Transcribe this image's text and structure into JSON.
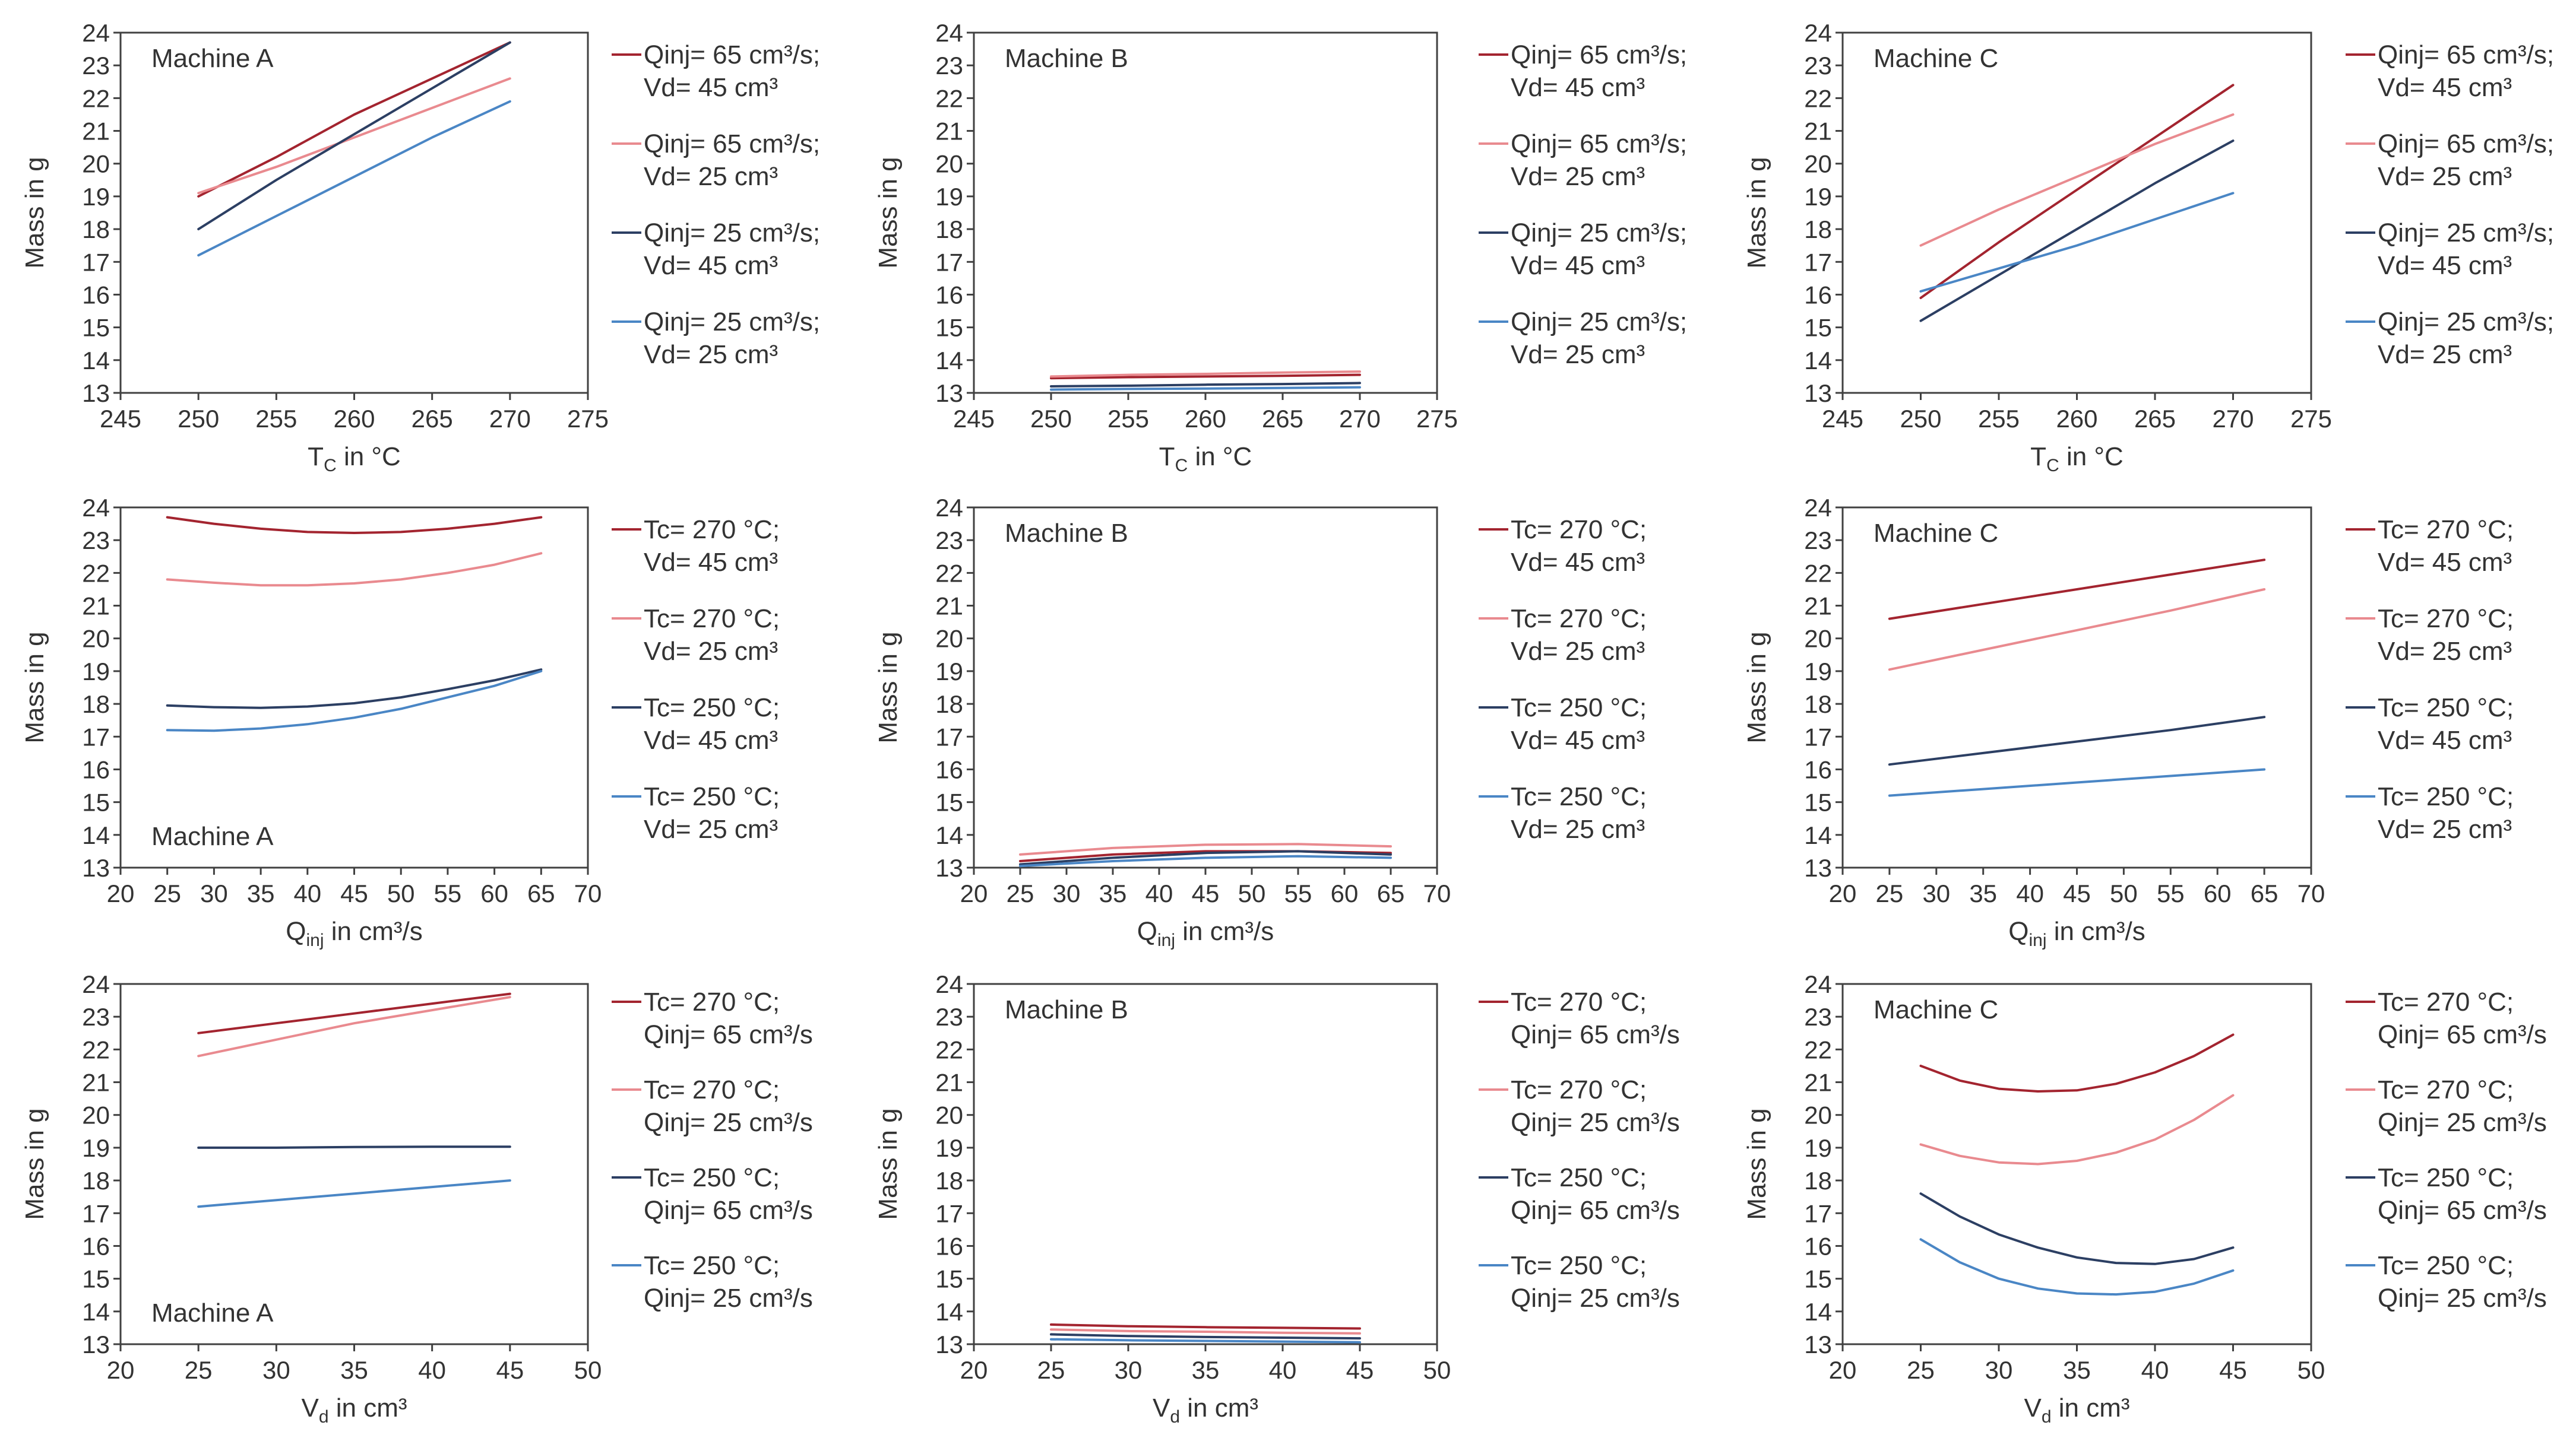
{
  "figure": {
    "description": "9 panel grid"
  },
  "colors": {
    "dark_red": "#a3242f",
    "light_red": "#e98a8f",
    "dark_blue": "#2c3f63",
    "light_blue": "#4a86c5",
    "axis": "#333333",
    "frame": "#404040"
  },
  "chart_data": [
    {
      "type": "line",
      "machine": "Machine A",
      "title_pos": "top-left",
      "xlabel": "T",
      "xlabel_sub": "C",
      "xlabel_rest": " in °C",
      "ylabel": "Mass in g",
      "xlim": [
        245,
        275
      ],
      "xticks": [
        245,
        250,
        255,
        260,
        265,
        270,
        275
      ],
      "ylim": [
        13,
        24
      ],
      "legend": [
        [
          "Qinj= 65 cm³/s;",
          "Vd= 45 cm³"
        ],
        [
          "Qinj= 65 cm³/s;",
          "Vd= 25 cm³"
        ],
        [
          "Qinj= 25 cm³/s;",
          "Vd= 45 cm³"
        ],
        [
          "Qinj= 25 cm³/s;",
          "Vd= 25 cm³"
        ]
      ],
      "series": [
        {
          "name": "Qinj= 65 cm³/s; Vd= 45 cm³",
          "x": [
            250,
            255,
            260,
            265,
            270
          ],
          "y": [
            19.0,
            20.2,
            21.5,
            22.6,
            23.7
          ]
        },
        {
          "name": "Qinj= 65 cm³/s; Vd= 25 cm³",
          "x": [
            250,
            255,
            260,
            265,
            270
          ],
          "y": [
            19.1,
            19.9,
            20.8,
            21.7,
            22.6
          ]
        },
        {
          "name": "Qinj= 25 cm³/s; Vd= 45 cm³",
          "x": [
            250,
            255,
            260,
            265,
            270
          ],
          "y": [
            18.0,
            19.5,
            20.9,
            22.3,
            23.7
          ]
        },
        {
          "name": "Qinj= 25 cm³/s; Vd= 25 cm³",
          "x": [
            250,
            255,
            260,
            265,
            270
          ],
          "y": [
            17.2,
            18.4,
            19.6,
            20.8,
            21.9
          ]
        }
      ]
    },
    {
      "type": "line",
      "machine": "Machine B",
      "title_pos": "top-left",
      "xlabel": "T",
      "xlabel_sub": "C",
      "xlabel_rest": " in °C",
      "ylabel": "Mass in g",
      "xlim": [
        245,
        275
      ],
      "xticks": [
        245,
        250,
        255,
        260,
        265,
        270,
        275
      ],
      "ylim": [
        13,
        24
      ],
      "legend": [
        [
          "Qinj= 65 cm³/s;",
          "Vd= 45 cm³"
        ],
        [
          "Qinj= 65 cm³/s;",
          "Vd= 25 cm³"
        ],
        [
          "Qinj= 25 cm³/s;",
          "Vd= 45 cm³"
        ],
        [
          "Qinj= 25 cm³/s;",
          "Vd= 25 cm³"
        ]
      ],
      "series": [
        {
          "name": "Qinj= 65 cm³/s; Vd= 45 cm³",
          "x": [
            250,
            255,
            260,
            265,
            270
          ],
          "y": [
            13.45,
            13.48,
            13.5,
            13.52,
            13.55
          ]
        },
        {
          "name": "Qinj= 65 cm³/s; Vd= 25 cm³",
          "x": [
            250,
            255,
            260,
            265,
            270
          ],
          "y": [
            13.5,
            13.55,
            13.58,
            13.62,
            13.65
          ]
        },
        {
          "name": "Qinj= 25 cm³/s; Vd= 45 cm³",
          "x": [
            250,
            255,
            260,
            265,
            270
          ],
          "y": [
            13.2,
            13.22,
            13.25,
            13.27,
            13.3
          ]
        },
        {
          "name": "Qinj= 25 cm³/s; Vd= 25 cm³",
          "x": [
            250,
            255,
            260,
            265,
            270
          ],
          "y": [
            13.1,
            13.12,
            13.13,
            13.15,
            13.17
          ]
        }
      ]
    },
    {
      "type": "line",
      "machine": "Machine C",
      "title_pos": "top-left",
      "xlabel": "T",
      "xlabel_sub": "C",
      "xlabel_rest": " in °C",
      "ylabel": "Mass in g",
      "xlim": [
        245,
        275
      ],
      "xticks": [
        245,
        250,
        255,
        260,
        265,
        270,
        275
      ],
      "ylim": [
        13,
        24
      ],
      "legend": [
        [
          "Qinj= 65 cm³/s;",
          "Vd= 45 cm³"
        ],
        [
          "Qinj= 65 cm³/s;",
          "Vd= 25 cm³"
        ],
        [
          "Qinj= 25 cm³/s;",
          "Vd= 45 cm³"
        ],
        [
          "Qinj= 25 cm³/s;",
          "Vd= 25 cm³"
        ]
      ],
      "series": [
        {
          "name": "Qinj= 65 cm³/s; Vd= 45 cm³",
          "x": [
            250,
            255,
            260,
            265,
            270
          ],
          "y": [
            15.9,
            17.6,
            19.2,
            20.8,
            22.4
          ]
        },
        {
          "name": "Qinj= 65 cm³/s; Vd= 25 cm³",
          "x": [
            250,
            255,
            260,
            265,
            270
          ],
          "y": [
            17.5,
            18.6,
            19.6,
            20.6,
            21.5
          ]
        },
        {
          "name": "Qinj= 25 cm³/s; Vd= 45 cm³",
          "x": [
            250,
            255,
            260,
            265,
            270
          ],
          "y": [
            15.2,
            16.6,
            18.0,
            19.4,
            20.7
          ]
        },
        {
          "name": "Qinj= 25 cm³/s; Vd= 25 cm³",
          "x": [
            250,
            255,
            260,
            265,
            270
          ],
          "y": [
            16.1,
            16.8,
            17.5,
            18.3,
            19.1
          ]
        }
      ]
    },
    {
      "type": "line",
      "machine": "Machine A",
      "title_pos": "bottom-left",
      "xlabel": "Q",
      "xlabel_sub": "inj",
      "xlabel_rest": " in cm³/s",
      "ylabel": "Mass in g",
      "xlim": [
        20,
        70
      ],
      "xticks": [
        20,
        25,
        30,
        35,
        40,
        45,
        50,
        55,
        60,
        65,
        70
      ],
      "ylim": [
        13,
        24
      ],
      "legend": [
        [
          "Tc= 270 °C;",
          "Vd= 45 cm³"
        ],
        [
          "Tc= 270 °C;",
          "Vd= 25 cm³"
        ],
        [
          "Tc= 250 °C;",
          "Vd= 45 cm³"
        ],
        [
          "Tc= 250 °C;",
          "Vd= 25 cm³"
        ]
      ],
      "series": [
        {
          "name": "Tc= 270 °C; Vd= 45 cm³",
          "x": [
            25,
            30,
            35,
            40,
            45,
            50,
            55,
            60,
            65
          ],
          "y": [
            23.7,
            23.5,
            23.35,
            23.25,
            23.22,
            23.25,
            23.35,
            23.5,
            23.7
          ]
        },
        {
          "name": "Tc= 270 °C; Vd= 25 cm³",
          "x": [
            25,
            30,
            35,
            40,
            45,
            50,
            55,
            60,
            65
          ],
          "y": [
            21.8,
            21.7,
            21.62,
            21.62,
            21.68,
            21.8,
            22.0,
            22.25,
            22.6
          ]
        },
        {
          "name": "Tc= 250 °C; Vd= 45 cm³",
          "x": [
            25,
            30,
            35,
            40,
            45,
            50,
            55,
            60,
            65
          ],
          "y": [
            17.95,
            17.9,
            17.88,
            17.92,
            18.02,
            18.2,
            18.45,
            18.72,
            19.05
          ]
        },
        {
          "name": "Tc= 250 °C; Vd= 25 cm³",
          "x": [
            25,
            30,
            35,
            40,
            45,
            50,
            55,
            60,
            65
          ],
          "y": [
            17.2,
            17.18,
            17.25,
            17.38,
            17.58,
            17.85,
            18.2,
            18.55,
            19.0
          ]
        }
      ]
    },
    {
      "type": "line",
      "machine": "Machine B",
      "title_pos": "top-left",
      "xlabel": "Q",
      "xlabel_sub": "inj",
      "xlabel_rest": " in cm³/s",
      "ylabel": "Mass in g",
      "xlim": [
        20,
        70
      ],
      "xticks": [
        20,
        25,
        30,
        35,
        40,
        45,
        50,
        55,
        60,
        65,
        70
      ],
      "ylim": [
        13,
        24
      ],
      "legend": [
        [
          "Tc= 270 °C;",
          "Vd= 45 cm³"
        ],
        [
          "Tc= 270 °C;",
          "Vd= 25 cm³"
        ],
        [
          "Tc= 250 °C;",
          "Vd= 45 cm³"
        ],
        [
          "Tc= 250 °C;",
          "Vd= 25 cm³"
        ]
      ],
      "series": [
        {
          "name": "Tc= 270 °C; Vd= 45 cm³",
          "x": [
            25,
            35,
            45,
            55,
            65
          ],
          "y": [
            13.2,
            13.4,
            13.5,
            13.5,
            13.45
          ]
        },
        {
          "name": "Tc= 270 °C; Vd= 25 cm³",
          "x": [
            25,
            35,
            45,
            55,
            65
          ],
          "y": [
            13.4,
            13.6,
            13.7,
            13.72,
            13.65
          ]
        },
        {
          "name": "Tc= 250 °C; Vd= 45 cm³",
          "x": [
            25,
            35,
            45,
            55,
            65
          ],
          "y": [
            13.1,
            13.3,
            13.45,
            13.5,
            13.4
          ]
        },
        {
          "name": "Tc= 250 °C; Vd= 25 cm³",
          "x": [
            25,
            35,
            45,
            55,
            65
          ],
          "y": [
            13.05,
            13.2,
            13.3,
            13.35,
            13.3
          ]
        }
      ]
    },
    {
      "type": "line",
      "machine": "Machine C",
      "title_pos": "top-left",
      "xlabel": "Q",
      "xlabel_sub": "inj",
      "xlabel_rest": " in cm³/s",
      "ylabel": "Mass in g",
      "xlim": [
        20,
        70
      ],
      "xticks": [
        20,
        25,
        30,
        35,
        40,
        45,
        50,
        55,
        60,
        65,
        70
      ],
      "ylim": [
        13,
        24
      ],
      "legend": [
        [
          "Tc= 270 °C;",
          "Vd= 45 cm³"
        ],
        [
          "Tc= 270 °C;",
          "Vd= 25 cm³"
        ],
        [
          "Tc= 250 °C;",
          "Vd= 45 cm³"
        ],
        [
          "Tc= 250 °C;",
          "Vd= 25 cm³"
        ]
      ],
      "series": [
        {
          "name": "Tc= 270 °C; Vd= 45 cm³",
          "x": [
            25,
            35,
            45,
            55,
            65
          ],
          "y": [
            20.6,
            21.05,
            21.5,
            21.95,
            22.4
          ]
        },
        {
          "name": "Tc= 270 °C; Vd= 25 cm³",
          "x": [
            25,
            35,
            45,
            55,
            65
          ],
          "y": [
            19.05,
            19.65,
            20.25,
            20.85,
            21.5
          ]
        },
        {
          "name": "Tc= 250 °C; Vd= 45 cm³",
          "x": [
            25,
            35,
            45,
            55,
            65
          ],
          "y": [
            16.15,
            16.5,
            16.85,
            17.2,
            17.6
          ]
        },
        {
          "name": "Tc= 250 °C; Vd= 25 cm³",
          "x": [
            25,
            35,
            45,
            55,
            65
          ],
          "y": [
            15.2,
            15.4,
            15.6,
            15.8,
            16.0
          ]
        }
      ]
    },
    {
      "type": "line",
      "machine": "Machine A",
      "title_pos": "bottom-left",
      "xlabel": "V",
      "xlabel_sub": "d",
      "xlabel_rest": " in cm³",
      "ylabel": "Mass in g",
      "xlim": [
        20,
        50
      ],
      "xticks": [
        20,
        25,
        30,
        35,
        40,
        45,
        50
      ],
      "ylim": [
        13,
        24
      ],
      "legend": [
        [
          "Tc= 270 °C;",
          "Qinj= 65 cm³/s"
        ],
        [
          "Tc= 270 °C;",
          "Qinj= 25 cm³/s"
        ],
        [
          "Tc= 250 °C;",
          "Qinj= 65 cm³/s"
        ],
        [
          "Tc= 250 °C;",
          "Qinj= 25 cm³/s"
        ]
      ],
      "series": [
        {
          "name": "Tc= 270 °C; Qinj= 65 cm³/s",
          "x": [
            25,
            30,
            35,
            40,
            45
          ],
          "y": [
            22.5,
            22.8,
            23.1,
            23.4,
            23.7
          ]
        },
        {
          "name": "Tc= 270 °C; Qinj= 25 cm³/s",
          "x": [
            25,
            30,
            35,
            40,
            45
          ],
          "y": [
            21.8,
            22.3,
            22.8,
            23.2,
            23.6
          ]
        },
        {
          "name": "Tc= 250 °C; Qinj= 65 cm³/s",
          "x": [
            25,
            30,
            35,
            40,
            45
          ],
          "y": [
            19.0,
            19.0,
            19.02,
            19.03,
            19.03
          ]
        },
        {
          "name": "Tc= 250 °C; Qinj= 25 cm³/s",
          "x": [
            25,
            30,
            35,
            40,
            45
          ],
          "y": [
            17.2,
            17.4,
            17.6,
            17.8,
            18.0
          ]
        }
      ]
    },
    {
      "type": "line",
      "machine": "Machine B",
      "title_pos": "top-left",
      "xlabel": "V",
      "xlabel_sub": "d",
      "xlabel_rest": " in cm³",
      "ylabel": "Mass in g",
      "xlim": [
        20,
        50
      ],
      "xticks": [
        20,
        25,
        30,
        35,
        40,
        45,
        50
      ],
      "ylim": [
        13,
        24
      ],
      "legend": [
        [
          "Tc= 270 °C;",
          "Qinj= 65 cm³/s"
        ],
        [
          "Tc= 270 °C;",
          "Qinj= 25 cm³/s"
        ],
        [
          "Tc= 250 °C;",
          "Qinj= 65 cm³/s"
        ],
        [
          "Tc= 250 °C;",
          "Qinj= 25 cm³/s"
        ]
      ],
      "series": [
        {
          "name": "Tc= 270 °C; Qinj= 65 cm³/s",
          "x": [
            25,
            30,
            35,
            40,
            45
          ],
          "y": [
            13.6,
            13.55,
            13.52,
            13.5,
            13.48
          ]
        },
        {
          "name": "Tc= 270 °C; Qinj= 25 cm³/s",
          "x": [
            25,
            30,
            35,
            40,
            45
          ],
          "y": [
            13.45,
            13.4,
            13.38,
            13.35,
            13.33
          ]
        },
        {
          "name": "Tc= 250 °C; Qinj= 65 cm³/s",
          "x": [
            25,
            30,
            35,
            40,
            45
          ],
          "y": [
            13.3,
            13.25,
            13.22,
            13.2,
            13.18
          ]
        },
        {
          "name": "Tc= 250 °C; Qinj= 25 cm³/s",
          "x": [
            25,
            30,
            35,
            40,
            45
          ],
          "y": [
            13.15,
            13.12,
            13.1,
            13.08,
            13.06
          ]
        }
      ]
    },
    {
      "type": "line",
      "machine": "Machine C",
      "title_pos": "top-left",
      "xlabel": "V",
      "xlabel_sub": "d",
      "xlabel_rest": " in cm³",
      "ylabel": "Mass in g",
      "xlim": [
        20,
        50
      ],
      "xticks": [
        20,
        25,
        30,
        35,
        40,
        45,
        50
      ],
      "ylim": [
        13,
        24
      ],
      "legend": [
        [
          "Tc= 270 °C;",
          "Qinj= 65 cm³/s"
        ],
        [
          "Tc= 270 °C;",
          "Qinj= 25 cm³/s"
        ],
        [
          "Tc= 250 °C;",
          "Qinj= 65 cm³/s"
        ],
        [
          "Tc= 250 °C;",
          "Qinj= 25 cm³/s"
        ]
      ],
      "series": [
        {
          "name": "Tc= 270 °C; Qinj= 65 cm³/s",
          "x": [
            25,
            27.5,
            30,
            32.5,
            35,
            37.5,
            40,
            42.5,
            45
          ],
          "y": [
            21.5,
            21.05,
            20.8,
            20.72,
            20.75,
            20.95,
            21.3,
            21.8,
            22.45
          ]
        },
        {
          "name": "Tc= 270 °C; Qinj= 25 cm³/s",
          "x": [
            25,
            27.5,
            30,
            32.5,
            35,
            37.5,
            40,
            42.5,
            45
          ],
          "y": [
            19.1,
            18.75,
            18.55,
            18.5,
            18.6,
            18.85,
            19.25,
            19.85,
            20.6
          ]
        },
        {
          "name": "Tc= 250 °C; Qinj= 65 cm³/s",
          "x": [
            25,
            27.5,
            30,
            32.5,
            35,
            37.5,
            40,
            42.5,
            45
          ],
          "y": [
            17.6,
            16.9,
            16.35,
            15.95,
            15.65,
            15.48,
            15.45,
            15.6,
            15.95
          ]
        },
        {
          "name": "Tc= 250 °C; Qinj= 25 cm³/s",
          "x": [
            25,
            27.5,
            30,
            32.5,
            35,
            37.5,
            40,
            42.5,
            45
          ],
          "y": [
            16.2,
            15.5,
            15.0,
            14.7,
            14.55,
            14.52,
            14.6,
            14.85,
            15.25
          ]
        }
      ]
    }
  ]
}
